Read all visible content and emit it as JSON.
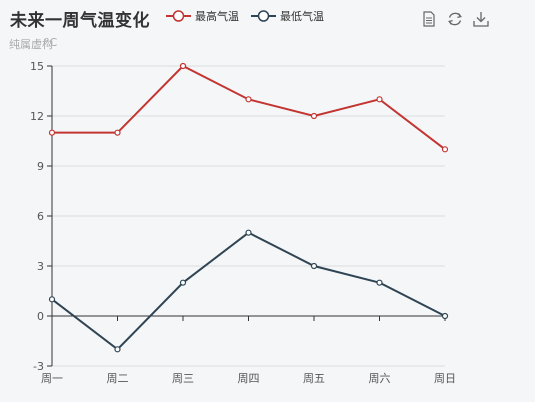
{
  "chart_data": {
    "type": "line",
    "title": "未来一周气温变化",
    "subtitle": "纯属虚构",
    "ylabel": "°C",
    "categories": [
      "周一",
      "周二",
      "周三",
      "周四",
      "周五",
      "周六",
      "周日"
    ],
    "series": [
      {
        "name": "最高气温",
        "values": [
          11,
          11,
          15,
          13,
          12,
          13,
          10
        ],
        "color": "#c23531"
      },
      {
        "name": "最低气温",
        "values": [
          1,
          -2,
          2,
          5,
          3,
          2,
          0
        ],
        "color": "#2f4554"
      }
    ],
    "ylim": [
      -3,
      15
    ],
    "yticks": [
      -3,
      0,
      3,
      6,
      9,
      12,
      15
    ],
    "grid": true,
    "legend_position": "top"
  },
  "toolbox": {
    "icons": [
      "data-view-icon",
      "restore-icon",
      "save-as-image-icon"
    ]
  }
}
